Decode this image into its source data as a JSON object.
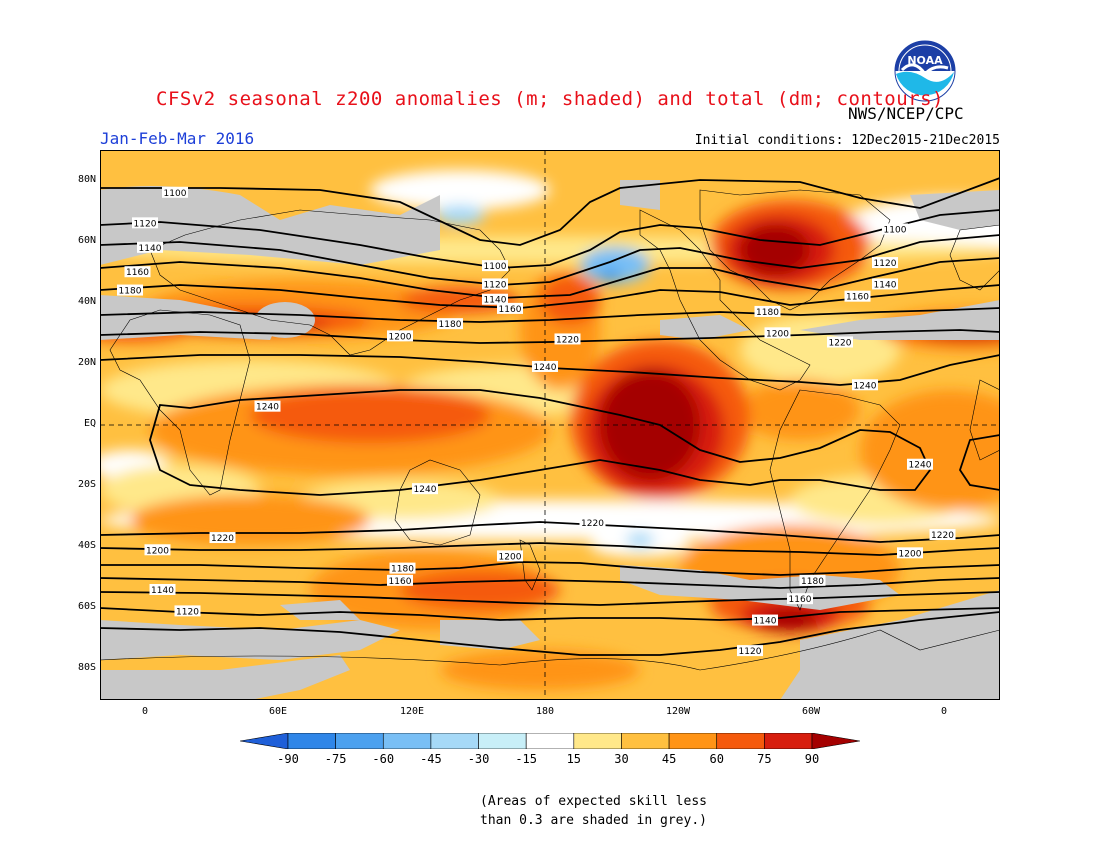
{
  "title": "CFSv2 seasonal z200 anomalies (m; shaded) and total (dm; contours)",
  "period": "Jan-Feb-Mar 2016",
  "agency": "NWS/NCEP/CPC",
  "initial_conditions": "Initial conditions: 12Dec2015-21Dec2015",
  "logo_text": "NOAA",
  "lat_labels": [
    "80N",
    "60N",
    "40N",
    "20N",
    "EQ",
    "20S",
    "40S",
    "60S",
    "80S"
  ],
  "lon_labels": [
    "0",
    "60E",
    "120E",
    "180",
    "120W",
    "60W",
    "0"
  ],
  "colorbar": {
    "labels": [
      "-90",
      "-75",
      "-60",
      "-45",
      "-30",
      "-15",
      "15",
      "30",
      "45",
      "60",
      "75",
      "90"
    ],
    "colors": [
      "#1f5fd8",
      "#2f86e8",
      "#4ca1ef",
      "#79bff5",
      "#a6d9f7",
      "#c8eff8",
      "#ffffff",
      "#ffe88a",
      "#ffc040",
      "#ff9416",
      "#f55a0c",
      "#d71e0e",
      "#a40000"
    ]
  },
  "note_lines": [
    "(Areas of expected skill less",
    "than 0.3 are shaded in grey.)"
  ],
  "contour_labels": [
    {
      "text": "1100",
      "lon": 10,
      "lat": 76
    },
    {
      "text": "1120",
      "lon": -2,
      "lat": 66
    },
    {
      "text": "1140",
      "lon": 0,
      "lat": 58
    },
    {
      "text": "1160",
      "lon": -5,
      "lat": 50
    },
    {
      "text": "1180",
      "lon": -8,
      "lat": 44
    },
    {
      "text": "1100",
      "lon": 138,
      "lat": 52
    },
    {
      "text": "1120",
      "lon": 138,
      "lat": 46
    },
    {
      "text": "1140",
      "lon": 138,
      "lat": 41
    },
    {
      "text": "1160",
      "lon": 144,
      "lat": 38
    },
    {
      "text": "1180",
      "lon": 120,
      "lat": 33
    },
    {
      "text": "1200",
      "lon": 100,
      "lat": 29
    },
    {
      "text": "1220",
      "lon": 167,
      "lat": 28
    },
    {
      "text": "1240",
      "lon": 158,
      "lat": 19
    },
    {
      "text": "1240",
      "lon": 47,
      "lat": 6
    },
    {
      "text": "1240",
      "lon": 110,
      "lat": -21
    },
    {
      "text": "1240",
      "lon": -52,
      "lat": -13
    },
    {
      "text": "1240",
      "lon": -74,
      "lat": 13
    },
    {
      "text": "1220",
      "lon": -84,
      "lat": 27
    },
    {
      "text": "1200",
      "lon": -109,
      "lat": 30
    },
    {
      "text": "1180",
      "lon": -113,
      "lat": 37
    },
    {
      "text": "1160",
      "lon": -77,
      "lat": 42
    },
    {
      "text": "1140",
      "lon": -66,
      "lat": 46
    },
    {
      "text": "1120",
      "lon": -66,
      "lat": 53
    },
    {
      "text": "1100",
      "lon": -62,
      "lat": 64
    },
    {
      "text": "1220",
      "lon": 177,
      "lat": -32
    },
    {
      "text": "1220",
      "lon": -43,
      "lat": -36
    },
    {
      "text": "1200",
      "lon": -56,
      "lat": -42
    },
    {
      "text": "1220",
      "lon": 29,
      "lat": -37
    },
    {
      "text": "1200",
      "lon": 3,
      "lat": -41
    },
    {
      "text": "1200",
      "lon": 144,
      "lat": -43
    },
    {
      "text": "1180",
      "lon": 101,
      "lat": -47
    },
    {
      "text": "1160",
      "lon": 100,
      "lat": -51
    },
    {
      "text": "1180",
      "lon": -95,
      "lat": -51
    },
    {
      "text": "1160",
      "lon": -100,
      "lat": -57
    },
    {
      "text": "1140",
      "lon": 5,
      "lat": -54
    },
    {
      "text": "1140",
      "lon": -114,
      "lat": -64
    },
    {
      "text": "1120",
      "lon": 15,
      "lat": -61
    },
    {
      "text": "1120",
      "lon": -120,
      "lat": -74
    }
  ]
}
